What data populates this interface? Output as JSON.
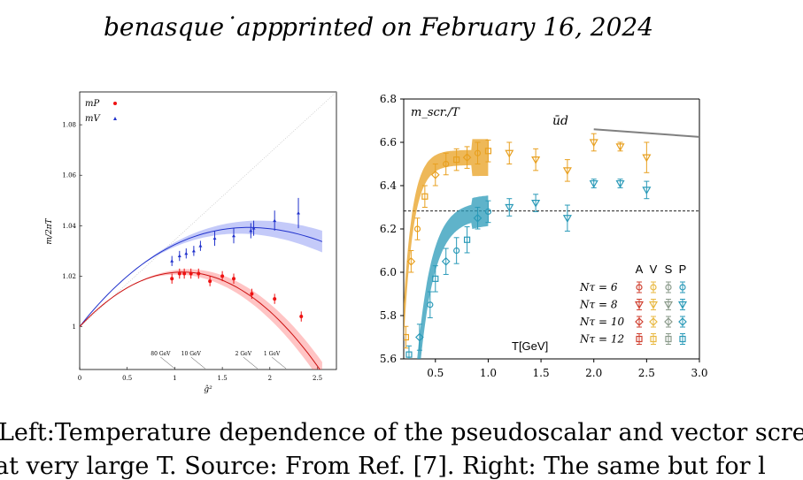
{
  "header": {
    "app_name": "benasque˙app",
    "printed": "printed on February 16, 2024"
  },
  "caption": {
    "line1": "Left:Temperature dependence of the pseudoscalar and vector scree",
    "line2": "at very large T. Source: From Ref. [7]. Right: The same but for l"
  },
  "chart_data": [
    {
      "type": "scatter",
      "ylabel": "m/2πT",
      "xlabel": "ĝ²",
      "xlim": [
        0,
        2.7
      ],
      "ylim": [
        0.983,
        1.093
      ],
      "xticks": [
        "0",
        "0.5",
        "1",
        "1.5",
        "2",
        "2.5"
      ],
      "yticks": [
        "1",
        "1.02",
        "1.04",
        "1.06",
        "1.08"
      ],
      "legend": {
        "placement": "top-left",
        "entries": [
          {
            "label": "mP",
            "color": "#ee1111",
            "marker": "circle"
          },
          {
            "label": "mV",
            "color": "#2233cc",
            "marker": "triangle"
          }
        ]
      },
      "temperature_marks": [
        {
          "label": "80 GeV",
          "x": 1.0
        },
        {
          "label": "10 GeV",
          "x": 1.32
        },
        {
          "label": "2 GeV",
          "x": 1.87
        },
        {
          "label": "1 GeV",
          "x": 2.17
        }
      ],
      "series": [
        {
          "name": "mP",
          "color": "#ee1111",
          "x": [
            0.97,
            1.05,
            1.1,
            1.17,
            1.25,
            1.37,
            1.5,
            1.62,
            1.81,
            2.05,
            2.33
          ],
          "y": [
            1.019,
            1.021,
            1.021,
            1.021,
            1.021,
            1.018,
            1.02,
            1.019,
            1.013,
            1.011,
            1.004
          ],
          "err": [
            0.002,
            0.002,
            0.002,
            0.002,
            0.002,
            0.002,
            0.002,
            0.002,
            0.002,
            0.002,
            0.002
          ]
        },
        {
          "name": "mV",
          "color": "#2233cc",
          "x": [
            0.97,
            1.05,
            1.12,
            1.2,
            1.27,
            1.42,
            1.62,
            1.8,
            1.83,
            2.05,
            2.3
          ],
          "y": [
            1.026,
            1.028,
            1.029,
            1.03,
            1.032,
            1.035,
            1.036,
            1.038,
            1.039,
            1.042,
            1.045
          ],
          "err": [
            0.002,
            0.002,
            0.002,
            0.002,
            0.002,
            0.003,
            0.003,
            0.003,
            0.003,
            0.004,
            0.006
          ]
        }
      ]
    },
    {
      "type": "scatter",
      "title": "m_scr./T",
      "annotation": "ūd",
      "xlabel": "T[GeV]",
      "xlim": [
        0.2,
        3.0
      ],
      "ylim": [
        5.6,
        6.8
      ],
      "xticks": [
        "0.5",
        "1.0",
        "1.5",
        "2.0",
        "2.5",
        "3.0"
      ],
      "yticks": [
        "5.6",
        "5.8",
        "6.0",
        "6.2",
        "6.4",
        "6.6",
        "6.8"
      ],
      "reference_line_y": 6.283,
      "free_limit": {
        "x": [
          2.0,
          3.0
        ],
        "y": [
          6.66,
          6.625
        ],
        "color": "#808080"
      },
      "legend": {
        "placement": "bottom-right",
        "columns": [
          "A",
          "V",
          "S",
          "P"
        ],
        "rows": [
          "Nτ = 6",
          "Nτ = 8",
          "Nτ = 10",
          "Nτ = 12"
        ]
      },
      "colors": {
        "vector": "#e8a020",
        "pseudoscalar": "#2a9ab8"
      },
      "series": [
        {
          "name": "V",
          "color": "#e8a020",
          "x": [
            0.22,
            0.27,
            0.33,
            0.4,
            0.5,
            0.6,
            0.7,
            0.8,
            0.9,
            1.0,
            1.2,
            1.45,
            1.75,
            2.0,
            2.25,
            2.5
          ],
          "y": [
            5.7,
            6.05,
            6.2,
            6.35,
            6.45,
            6.5,
            6.52,
            6.53,
            6.55,
            6.56,
            6.55,
            6.52,
            6.47,
            6.6,
            6.58,
            6.53
          ],
          "err": [
            0.05,
            0.05,
            0.05,
            0.05,
            0.05,
            0.05,
            0.05,
            0.05,
            0.05,
            0.05,
            0.05,
            0.05,
            0.05,
            0.04,
            0.02,
            0.07
          ]
        },
        {
          "name": "P",
          "color": "#2a9ab8",
          "x": [
            0.25,
            0.35,
            0.45,
            0.5,
            0.6,
            0.7,
            0.8,
            0.9,
            1.0,
            1.2,
            1.45,
            1.75,
            2.0,
            2.25,
            2.5
          ],
          "y": [
            5.62,
            5.7,
            5.85,
            5.97,
            6.05,
            6.1,
            6.15,
            6.25,
            6.28,
            6.3,
            6.32,
            6.25,
            6.41,
            6.41,
            6.38
          ],
          "err": [
            0.04,
            0.06,
            0.06,
            0.06,
            0.06,
            0.06,
            0.06,
            0.05,
            0.05,
            0.04,
            0.04,
            0.06,
            0.02,
            0.02,
            0.04
          ]
        }
      ]
    }
  ]
}
